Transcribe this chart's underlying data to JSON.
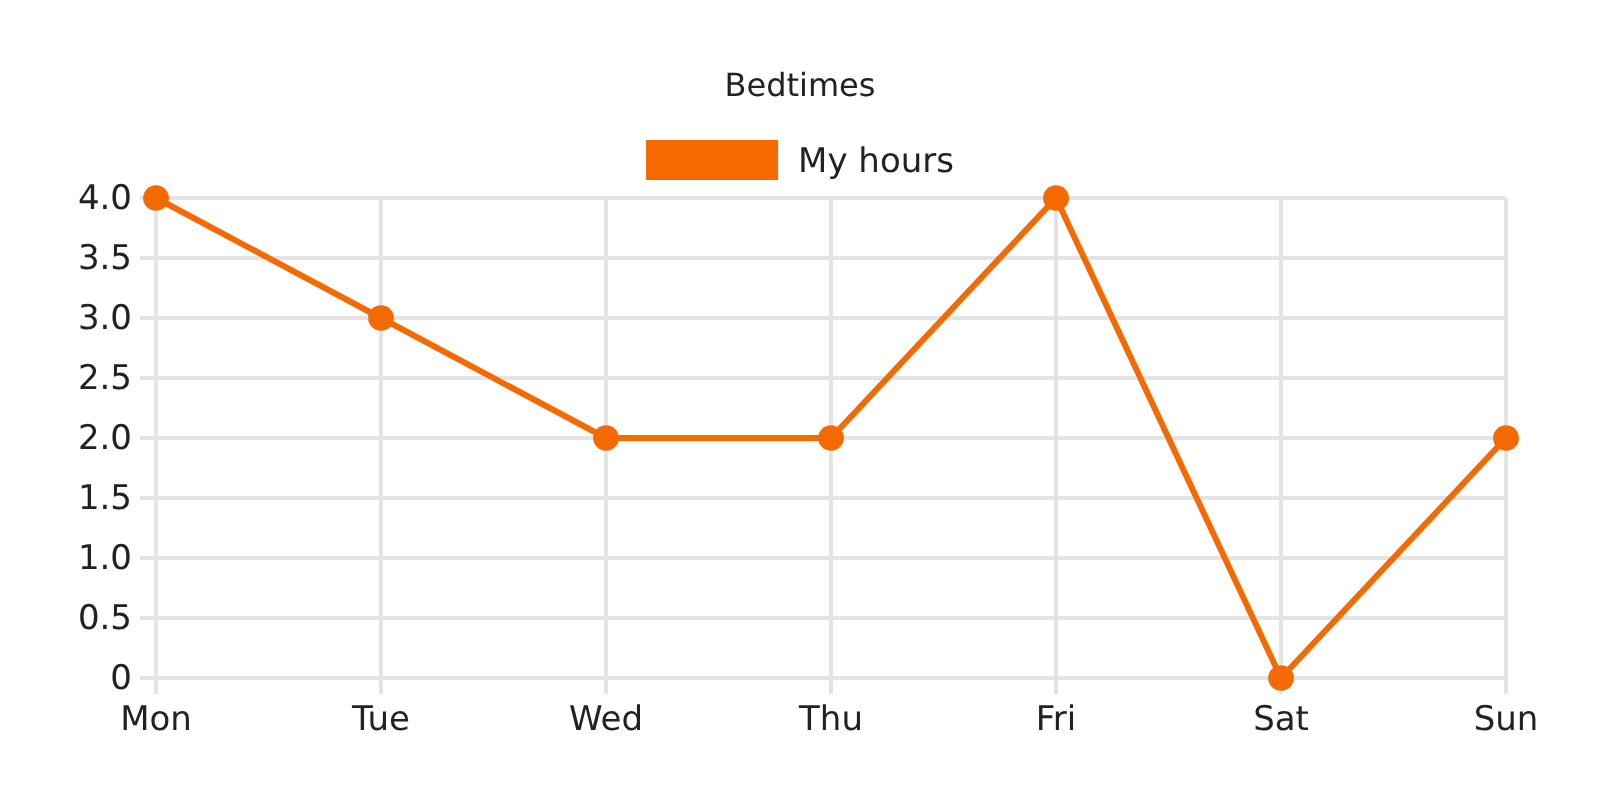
{
  "chart_data": {
    "type": "line",
    "title": "Bedtimes",
    "categories": [
      "Mon",
      "Tue",
      "Wed",
      "Thu",
      "Fri",
      "Sat",
      "Sun"
    ],
    "series": [
      {
        "name": "My hours",
        "color": "#f56a00",
        "values": [
          4,
          3,
          2,
          2,
          4,
          0,
          2
        ]
      }
    ],
    "ylim": [
      0,
      4
    ],
    "yticks": [
      0,
      {
        "value": 0.5,
        "label": "0.5"
      },
      {
        "value": 1,
        "label": "1.0"
      },
      {
        "value": 1.5,
        "label": "1.5"
      },
      {
        "value": 2,
        "label": "2.0"
      },
      {
        "value": 2.5,
        "label": "2.5"
      },
      {
        "value": 3,
        "label": "3.0"
      },
      {
        "value": 3.5,
        "label": "3.5"
      },
      {
        "value": 4,
        "label": "4.0"
      }
    ],
    "grid": true,
    "legend": "top",
    "marker": "circle",
    "line_style": "solid"
  }
}
